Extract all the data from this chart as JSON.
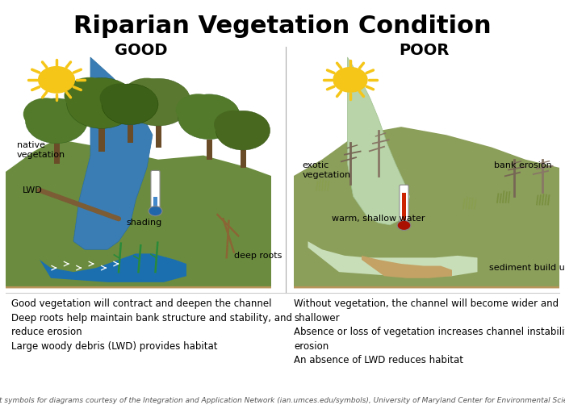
{
  "title": "Riparian Vegetation Condition",
  "title_fontsize": 22,
  "title_fontweight": "bold",
  "good_label": "GOOD",
  "poor_label": "POOR",
  "label_fontsize": 14,
  "label_fontweight": "bold",
  "good_text_lines": [
    "Good vegetation will contract and deepen the channel",
    "Deep roots help maintain bank structure and stability, and",
    "reduce erosion",
    "Large woody debris (LWD) provides habitat"
  ],
  "poor_text_lines": [
    "Without vegetation, the channel will become wider and",
    "shallower",
    "Absence or loss of vegetation increases channel instability and",
    "erosion",
    "An absence of LWD reduces habitat"
  ],
  "footer": "Most symbols for diagrams courtesy of the Integration and Application Network (ian.umces.edu/symbols), University of Maryland Center for Environmental Science",
  "text_fontsize": 8.5,
  "footer_fontsize": 6.5,
  "bg_color": "#ffffff"
}
